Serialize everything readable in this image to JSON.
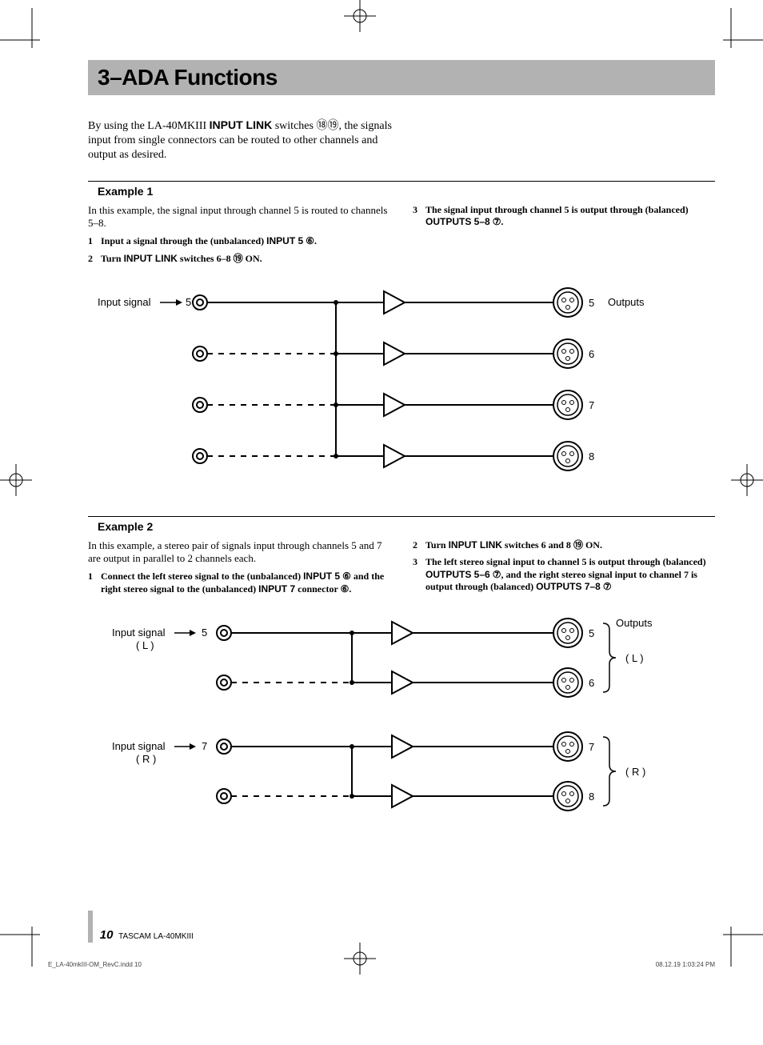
{
  "title": "3–ADA Functions",
  "intro_parts": [
    "By using the LA-40",
    "MK",
    "III ",
    "INPUT LINK",
    " switches ",
    "⑱⑲",
    ", the signals input from single connectors can be routed to other channels and output as desired."
  ],
  "example1": {
    "heading": "Example 1",
    "lead": "In this example, the signal input through channel 5 is routed to channels 5–8.",
    "steps": [
      {
        "n": "1",
        "t": [
          "Input a signal through the (unbalanced) ",
          "INPUT 5",
          " ",
          "⑥",
          "."
        ]
      },
      {
        "n": "2",
        "t": [
          "Turn ",
          "INPUT LINK",
          " switches 6–8 ",
          "⑲",
          " ON."
        ]
      },
      {
        "n": "3",
        "t": [
          "The signal input through channel 5 is output through (balanced) ",
          "OUTPUTS 5–8",
          " ",
          "⑦",
          "."
        ]
      }
    ],
    "diagram": {
      "type": "flowchart",
      "input_label": "Input signal",
      "input_num": "5",
      "outputs_label": "Outputs",
      "rows": [
        {
          "num": "5",
          "input_connected": true
        },
        {
          "num": "6",
          "input_connected": false
        },
        {
          "num": "7",
          "input_connected": false
        },
        {
          "num": "8",
          "input_connected": false
        }
      ],
      "bus_from_row": 0,
      "colors": {
        "stroke": "#000000",
        "bg": "#ffffff",
        "stroke_width": 2
      },
      "font_family": "Arial"
    }
  },
  "example2": {
    "heading": "Example 2",
    "lead": "In this example, a stereo pair of signals input through channels 5 and 7 are output in parallel to 2 channels each.",
    "steps": [
      {
        "n": "1",
        "t": [
          "Connect the left stereo signal to the (unbalanced) ",
          "INPUT 5",
          " ",
          "⑥",
          " and the right stereo signal to the (unbalanced) ",
          "INPUT 7",
          " connector ",
          "⑥",
          "."
        ]
      },
      {
        "n": "2",
        "t": [
          "Turn ",
          "INPUT LINK",
          " switches 6 and 8 ",
          "⑲",
          " ON."
        ]
      },
      {
        "n": "3",
        "t": [
          "The left stereo signal input to channel 5 is output through (balanced) ",
          "OUTPUTS 5–6",
          " ",
          "⑦",
          ", and the right stereo signal input to channel 7 is output through (balanced) ",
          "OUTPUTS 7–8",
          " ",
          "⑦",
          "."
        ]
      }
    ],
    "diagram": {
      "type": "flowchart",
      "input_label": "Input signal",
      "outputs_label": "Outputs",
      "groups": [
        {
          "side": "( L )",
          "input_num": "5",
          "rows": [
            {
              "num": "5",
              "input_connected": true
            },
            {
              "num": "6",
              "input_connected": false
            }
          ]
        },
        {
          "side": "( R )",
          "input_num": "7",
          "rows": [
            {
              "num": "7",
              "input_connected": true
            },
            {
              "num": "8",
              "input_connected": false
            }
          ]
        }
      ],
      "colors": {
        "stroke": "#000000",
        "bg": "#ffffff",
        "stroke_width": 2
      },
      "font_family": "Arial"
    }
  },
  "footer": {
    "page_num": "10",
    "product": "TASCAM  LA-40MKIII",
    "file": "E_LA-40mkIII-OM_RevC.indd   10",
    "timestamp": "08.12.19   1:03:24 PM"
  }
}
